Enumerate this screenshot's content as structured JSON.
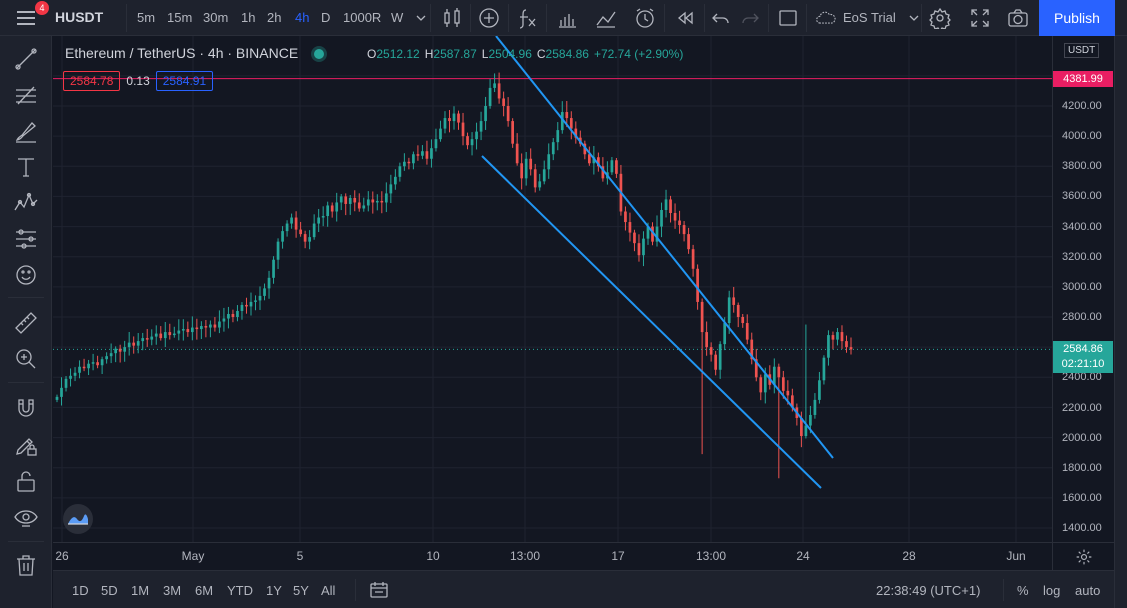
{
  "header": {
    "notification_count": "4",
    "symbol": "HUSDT",
    "timeframes": [
      "5m",
      "15m",
      "30m",
      "1h",
      "2h",
      "4h",
      "D",
      "1000R",
      "W"
    ],
    "active_timeframe": "4h",
    "trial_label": "EoS Trial",
    "publish_label": "Publish"
  },
  "legend": {
    "title": "Ethereum / TetherUS · 4h · BINANCE",
    "open_key": "O",
    "open": "2512.12",
    "high_key": "H",
    "high": "2587.87",
    "low_key": "L",
    "low": "2504.96",
    "close_key": "C",
    "close": "2584.86",
    "change": "+72.74 (+2.90%)",
    "bid": "2584.78",
    "spread": "0.13",
    "ask": "2584.91"
  },
  "price_axis": {
    "unit": "USDT",
    "labels": [
      "4200.00",
      "4000.00",
      "3800.00",
      "3600.00",
      "3400.00",
      "3200.00",
      "3000.00",
      "2800.00",
      "2400.00",
      "2200.00",
      "2000.00",
      "1800.00",
      "1600.00",
      "1400.00"
    ],
    "horizontal_line_price": "4381.99",
    "last_price": "2584.86",
    "countdown": "02:21:10"
  },
  "time_axis": {
    "labels": [
      "26",
      "May",
      "5",
      "10",
      "13:00",
      "17",
      "13:00",
      "24",
      "28",
      "Jun"
    ]
  },
  "bottom": {
    "ranges": [
      "1D",
      "5D",
      "1M",
      "3M",
      "6M",
      "YTD",
      "1Y",
      "5Y",
      "All"
    ],
    "clock": "22:38:49 (UTC+1)",
    "percent": "%",
    "log": "log",
    "auto": "auto"
  },
  "colors": {
    "up": "#26a69a",
    "down": "#ef5350",
    "trendline": "#2196f3",
    "hline": "#e91e63",
    "accent": "#2962ff"
  },
  "chart_data": {
    "type": "candlestick",
    "title": "Ethereum / TetherUS · 4h · BINANCE",
    "ylim": [
      1300,
      4450
    ],
    "close": [
      2270,
      2330,
      2390,
      2410,
      2430,
      2470,
      2460,
      2490,
      2500,
      2480,
      2520,
      2540,
      2560,
      2590,
      2570,
      2600,
      2630,
      2610,
      2640,
      2660,
      2650,
      2670,
      2690,
      2660,
      2700,
      2680,
      2690,
      2710,
      2720,
      2700,
      2730,
      2720,
      2740,
      2730,
      2750,
      2730,
      2770,
      2790,
      2820,
      2800,
      2840,
      2880,
      2870,
      2900,
      2910,
      2940,
      2990,
      3060,
      3180,
      3300,
      3370,
      3420,
      3460,
      3380,
      3350,
      3300,
      3330,
      3420,
      3460,
      3470,
      3540,
      3500,
      3560,
      3600,
      3550,
      3590,
      3560,
      3520,
      3540,
      3580,
      3560,
      3570,
      3560,
      3620,
      3680,
      3730,
      3800,
      3830,
      3820,
      3880,
      3870,
      3900,
      3850,
      3920,
      3980,
      4050,
      4120,
      4100,
      4150,
      4090,
      4000,
      3940,
      3980,
      4030,
      4100,
      4200,
      4320,
      4350,
      4250,
      4200,
      4100,
      3950,
      3820,
      3720,
      3850,
      3780,
      3660,
      3700,
      3780,
      3880,
      3960,
      4040,
      4160,
      4120,
      4050,
      3990,
      3950,
      3880,
      3820,
      3860,
      3800,
      3720,
      3760,
      3840,
      3750,
      3500,
      3430,
      3360,
      3290,
      3210,
      3320,
      3400,
      3300,
      3400,
      3510,
      3580,
      3490,
      3440,
      3410,
      3350,
      3250,
      3120,
      2900,
      2700,
      2600,
      2550,
      2450,
      2620,
      2760,
      2930,
      2880,
      2800,
      2760,
      2650,
      2520,
      2400,
      2300,
      2420,
      2350,
      2470,
      2400,
      2310,
      2280,
      2200,
      2130,
      2010,
      2080,
      2150,
      2250,
      2380,
      2530,
      2680,
      2650,
      2700,
      2640,
      2600,
      2584.86
    ]
  }
}
